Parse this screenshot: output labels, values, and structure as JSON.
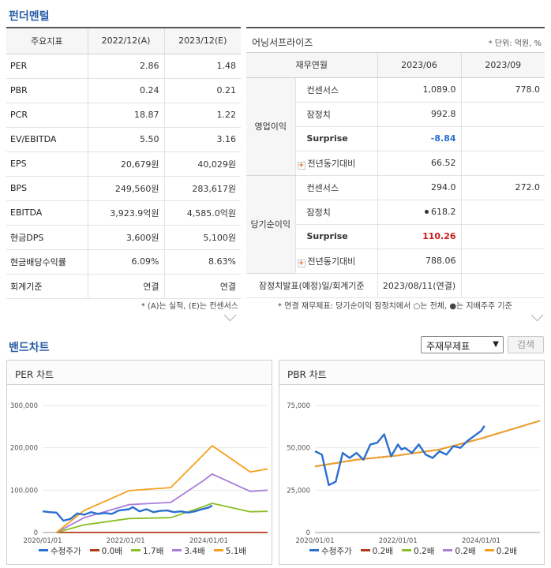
{
  "fundamental": {
    "title": "펀더멘털",
    "table1": {
      "headers": [
        "주요지표",
        "2022/12(A)",
        "2023/12(E)"
      ],
      "rows": [
        [
          "PER",
          "2.86",
          "1.48"
        ],
        [
          "PBR",
          "0.24",
          "0.21"
        ],
        [
          "PCR",
          "18.87",
          "1.22"
        ],
        [
          "EV/EBITDA",
          "5.50",
          "3.16"
        ],
        [
          "EPS",
          "20,679원",
          "40,029원"
        ],
        [
          "BPS",
          "249,560원",
          "283,617원"
        ],
        [
          "EBITDA",
          "3,923.9억원",
          "4,585.0억원"
        ],
        [
          "현금DPS",
          "3,600원",
          "5,100원"
        ],
        [
          "현금배당수익률",
          "6.09%",
          "8.63%"
        ],
        [
          "회계기준",
          "연결",
          "연결"
        ]
      ],
      "note": "* (A)는 실적, (E)는 컨센서스"
    },
    "table2": {
      "title": "어닝서프라이즈",
      "unit": "* 단위: 억원, %",
      "headers": [
        "재무연월",
        "2023/06",
        "2023/09"
      ],
      "groups": [
        {
          "name": "영업이익",
          "rows": [
            {
              "label": "컨센서스",
              "v1": "1,089.0",
              "v2": "778.0"
            },
            {
              "label": "잠정치",
              "v1": "992.8",
              "v2": ""
            },
            {
              "label": "Surprise",
              "v1": "-8.84",
              "v2": ""
            },
            {
              "label": "전년동기대비",
              "v1": "66.52",
              "v2": ""
            }
          ]
        },
        {
          "name": "당기순이익",
          "rows": [
            {
              "label": "컨센서스",
              "v1": "294.0",
              "v2": "272.0"
            },
            {
              "label": "잠정치",
              "v1": "618.2",
              "v2": ""
            },
            {
              "label": "Surprise",
              "v1": "110.26",
              "v2": ""
            },
            {
              "label": "전년동기대비",
              "v1": "788.06",
              "v2": ""
            }
          ]
        }
      ],
      "footer_label": "잠정치발표(예정)일/회계기준",
      "footer_value": "2023/08/11(연결)",
      "note": "* 연결 재무제표: 당기순이익 잠정치에서 ○는 전체, ●는 지배주주 기준"
    }
  },
  "band": {
    "title": "밴드차트",
    "select_value": "주재무제표",
    "search_label": "검색",
    "per_title": "PER 차트",
    "pbr_title": "PBR 차트"
  },
  "colors": {
    "price": "#2b6fcf",
    "b0": "#b03a1a",
    "b1": "#8cbf26",
    "b2": "#a77ed8",
    "b3": "#f5a01f",
    "pbr_band": "#f5a01f"
  },
  "chart_data": [
    {
      "type": "line",
      "title": "PER 차트",
      "x_ticks": [
        "2020/01/01",
        "2022/01/01",
        "2024/01/01"
      ],
      "y_ticks": [
        "0",
        "100,000",
        "200,000",
        "300,000"
      ],
      "ylim": [
        0,
        300000
      ],
      "x_domain": [
        "2020-01",
        "2025-06"
      ],
      "series": [
        {
          "name": "수정주가",
          "color": "#2b6fcf",
          "x": [
            "2020-01",
            "2020-03",
            "2020-05",
            "2020-07",
            "2020-09",
            "2020-11",
            "2021-01",
            "2021-03",
            "2021-05",
            "2021-07",
            "2021-09",
            "2021-11",
            "2022-01",
            "2022-02",
            "2022-03",
            "2022-05",
            "2022-07",
            "2022-09",
            "2022-11",
            "2023-01",
            "2023-03",
            "2023-05",
            "2023-07",
            "2023-09",
            "2023-11",
            "2024-01",
            "2024-02"
          ],
          "y": [
            50000,
            48000,
            47000,
            28000,
            32000,
            45000,
            42000,
            48000,
            44000,
            46000,
            44000,
            52000,
            54000,
            55000,
            60000,
            50000,
            55000,
            48000,
            51000,
            52000,
            48000,
            50000,
            47000,
            50000,
            55000,
            59000,
            64000
          ]
        },
        {
          "name": "0.0배",
          "color": "#b03a1a",
          "x": [
            "2020-05",
            "2025-06"
          ],
          "y": [
            0,
            0
          ]
        },
        {
          "name": "1.7배",
          "color": "#8cbf26",
          "x": [
            "2020-05",
            "2021-01",
            "2022-02",
            "2023-02",
            "2023-11",
            "2024-02",
            "2025-01",
            "2025-06"
          ],
          "y": [
            0,
            18000,
            33000,
            35000,
            60000,
            69000,
            49000,
            50000
          ]
        },
        {
          "name": "3.4배",
          "color": "#a77ed8",
          "x": [
            "2020-05",
            "2021-01",
            "2022-02",
            "2023-02",
            "2023-11",
            "2024-02",
            "2025-01",
            "2025-06"
          ],
          "y": [
            0,
            35000,
            66000,
            71000,
            120000,
            138000,
            97000,
            100000
          ]
        },
        {
          "name": "5.1배",
          "color": "#f5a01f",
          "x": [
            "2020-05",
            "2021-01",
            "2022-02",
            "2023-02",
            "2023-11",
            "2024-02",
            "2025-01",
            "2025-06"
          ],
          "y": [
            0,
            52000,
            99000,
            106000,
            180000,
            205000,
            143000,
            150000
          ]
        }
      ]
    },
    {
      "type": "line",
      "title": "PBR 차트",
      "x_ticks": [
        "2020/01/01",
        "2022/01/01",
        "2024/01/01"
      ],
      "y_ticks": [
        "0",
        "25,000",
        "50,000",
        "75,000"
      ],
      "ylim": [
        0,
        75000
      ],
      "x_domain": [
        "2020-01",
        "2025-06"
      ],
      "series": [
        {
          "name": "수정주가",
          "color": "#2b6fcf",
          "x": [
            "2020-01",
            "2020-03",
            "2020-05",
            "2020-07",
            "2020-09",
            "2020-11",
            "2021-01",
            "2021-03",
            "2021-05",
            "2021-07",
            "2021-09",
            "2021-11",
            "2022-01",
            "2022-02",
            "2022-03",
            "2022-05",
            "2022-07",
            "2022-09",
            "2022-11",
            "2023-01",
            "2023-03",
            "2023-05",
            "2023-07",
            "2023-09",
            "2023-11",
            "2024-01",
            "2024-02"
          ],
          "y": [
            48000,
            46000,
            28000,
            30000,
            47000,
            44000,
            47000,
            43000,
            52000,
            53000,
            58000,
            45000,
            52000,
            49000,
            50000,
            47000,
            52000,
            46000,
            44000,
            48000,
            46000,
            51000,
            50000,
            54000,
            57000,
            60000,
            63000
          ]
        },
        {
          "name": "0.2배",
          "color": "#b03a1a",
          "x": [
            "2020-01",
            "2021-01",
            "2022-01",
            "2023-01",
            "2024-01",
            "2025-06"
          ],
          "y": [
            39000,
            43000,
            45500,
            49000,
            55500,
            66000
          ]
        },
        {
          "name": "0.2배",
          "color": "#8cbf26",
          "x": [
            "2020-01",
            "2021-01",
            "2022-01",
            "2023-01",
            "2024-01",
            "2025-06"
          ],
          "y": [
            39000,
            43000,
            45500,
            49000,
            55500,
            66000
          ]
        },
        {
          "name": "0.2배",
          "color": "#a77ed8",
          "x": [
            "2020-01",
            "2021-01",
            "2022-01",
            "2023-01",
            "2024-01",
            "2025-06"
          ],
          "y": [
            39000,
            43000,
            45500,
            49000,
            55500,
            66000
          ]
        },
        {
          "name": "0.2배",
          "color": "#f5a01f",
          "x": [
            "2020-01",
            "2021-01",
            "2022-01",
            "2023-01",
            "2024-01",
            "2025-06"
          ],
          "y": [
            39000,
            43000,
            45500,
            49000,
            55500,
            66000
          ]
        }
      ]
    }
  ]
}
